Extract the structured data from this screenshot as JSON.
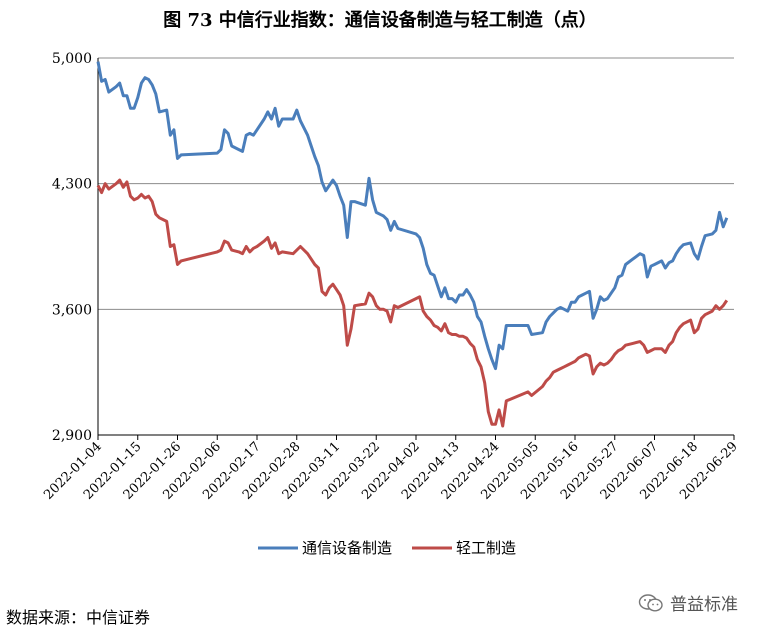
{
  "chart_data": {
    "type": "line",
    "title": "图 73  中信行业指数：通信设备制造与轻工制造（点）",
    "ylim": [
      2900,
      5000
    ],
    "yticks": [
      "2,900",
      "3,600",
      "4,300",
      "5,000"
    ],
    "ytick_values": [
      2900,
      3600,
      4300,
      5000
    ],
    "xtick_labels": [
      "2022-01-04",
      "2022-01-15",
      "2022-01-26",
      "2022-02-06",
      "2022-02-17",
      "2022-02-28",
      "2022-03-11",
      "2022-03-22",
      "2022-04-02",
      "2022-04-13",
      "2022-04-24",
      "2022-05-05",
      "2022-05-16",
      "2022-05-27",
      "2022-06-07",
      "2022-06-18",
      "2022-06-29"
    ],
    "xtick_days": [
      0,
      11,
      22,
      33,
      44,
      55,
      66,
      77,
      88,
      99,
      110,
      121,
      132,
      143,
      154,
      165,
      176
    ],
    "grid": "horizontal",
    "legend": "bottom",
    "series": [
      {
        "name": "通信设备制造",
        "color": "#4a7ebb",
        "points": [
          [
            0,
            4980
          ],
          [
            1,
            4870
          ],
          [
            2,
            4880
          ],
          [
            3,
            4810
          ],
          [
            5,
            4840
          ],
          [
            6,
            4860
          ],
          [
            7,
            4790
          ],
          [
            8,
            4790
          ],
          [
            9,
            4720
          ],
          [
            10,
            4720
          ],
          [
            11,
            4780
          ],
          [
            12,
            4860
          ],
          [
            13,
            4890
          ],
          [
            14,
            4880
          ],
          [
            15,
            4850
          ],
          [
            16,
            4800
          ],
          [
            17,
            4700
          ],
          [
            19,
            4710
          ],
          [
            20,
            4570
          ],
          [
            21,
            4600
          ],
          [
            22,
            4440
          ],
          [
            23,
            4460
          ],
          [
            33,
            4470
          ],
          [
            34,
            4490
          ],
          [
            35,
            4600
          ],
          [
            36,
            4580
          ],
          [
            37,
            4510
          ],
          [
            39,
            4490
          ],
          [
            40,
            4480
          ],
          [
            41,
            4570
          ],
          [
            42,
            4580
          ],
          [
            43,
            4570
          ],
          [
            44,
            4600
          ],
          [
            46,
            4660
          ],
          [
            47,
            4700
          ],
          [
            48,
            4660
          ],
          [
            49,
            4720
          ],
          [
            50,
            4620
          ],
          [
            51,
            4660
          ],
          [
            54,
            4660
          ],
          [
            55,
            4710
          ],
          [
            56,
            4650
          ],
          [
            58,
            4570
          ],
          [
            59,
            4510
          ],
          [
            60,
            4450
          ],
          [
            61,
            4400
          ],
          [
            62,
            4310
          ],
          [
            63,
            4260
          ],
          [
            64,
            4290
          ],
          [
            65,
            4320
          ],
          [
            66,
            4290
          ],
          [
            67,
            4230
          ],
          [
            68,
            4180
          ],
          [
            69,
            4000
          ],
          [
            70,
            4200
          ],
          [
            71,
            4200
          ],
          [
            74,
            4180
          ],
          [
            75,
            4330
          ],
          [
            76,
            4210
          ],
          [
            77,
            4140
          ],
          [
            78,
            4130
          ],
          [
            79,
            4120
          ],
          [
            80,
            4100
          ],
          [
            81,
            4040
          ],
          [
            82,
            4090
          ],
          [
            83,
            4050
          ],
          [
            88,
            4020
          ],
          [
            89,
            4000
          ],
          [
            90,
            3940
          ],
          [
            91,
            3850
          ],
          [
            92,
            3800
          ],
          [
            93,
            3790
          ],
          [
            94,
            3730
          ],
          [
            95,
            3670
          ],
          [
            96,
            3720
          ],
          [
            97,
            3660
          ],
          [
            98,
            3660
          ],
          [
            99,
            3640
          ],
          [
            100,
            3680
          ],
          [
            101,
            3680
          ],
          [
            102,
            3710
          ],
          [
            103,
            3680
          ],
          [
            104,
            3640
          ],
          [
            105,
            3560
          ],
          [
            106,
            3530
          ],
          [
            107,
            3450
          ],
          [
            108,
            3380
          ],
          [
            109,
            3320
          ],
          [
            110,
            3270
          ],
          [
            111,
            3400
          ],
          [
            112,
            3380
          ],
          [
            113,
            3510
          ],
          [
            119,
            3510
          ],
          [
            120,
            3460
          ],
          [
            123,
            3470
          ],
          [
            124,
            3530
          ],
          [
            125,
            3560
          ],
          [
            126,
            3580
          ],
          [
            127,
            3600
          ],
          [
            128,
            3610
          ],
          [
            129,
            3600
          ],
          [
            130,
            3590
          ],
          [
            131,
            3640
          ],
          [
            132,
            3640
          ],
          [
            133,
            3670
          ],
          [
            134,
            3680
          ],
          [
            135,
            3690
          ],
          [
            136,
            3700
          ],
          [
            137,
            3550
          ],
          [
            138,
            3600
          ],
          [
            139,
            3670
          ],
          [
            140,
            3650
          ],
          [
            141,
            3660
          ],
          [
            142,
            3690
          ],
          [
            143,
            3720
          ],
          [
            144,
            3780
          ],
          [
            145,
            3790
          ],
          [
            146,
            3850
          ],
          [
            148,
            3880
          ],
          [
            150,
            3910
          ],
          [
            151,
            3900
          ],
          [
            152,
            3780
          ],
          [
            153,
            3840
          ],
          [
            154,
            3850
          ],
          [
            156,
            3870
          ],
          [
            157,
            3830
          ],
          [
            158,
            3860
          ],
          [
            159,
            3870
          ],
          [
            160,
            3910
          ],
          [
            161,
            3940
          ],
          [
            162,
            3960
          ],
          [
            164,
            3970
          ],
          [
            165,
            3910
          ],
          [
            166,
            3880
          ],
          [
            167,
            3950
          ],
          [
            168,
            4010
          ],
          [
            170,
            4020
          ],
          [
            171,
            4040
          ],
          [
            172,
            4140
          ],
          [
            173,
            4060
          ],
          [
            174,
            4110
          ]
        ]
      },
      {
        "name": "轻工制造",
        "color": "#be4b48",
        "points": [
          [
            0,
            4290
          ],
          [
            1,
            4250
          ],
          [
            2,
            4300
          ],
          [
            3,
            4270
          ],
          [
            5,
            4300
          ],
          [
            6,
            4320
          ],
          [
            7,
            4280
          ],
          [
            8,
            4310
          ],
          [
            9,
            4230
          ],
          [
            10,
            4210
          ],
          [
            11,
            4220
          ],
          [
            12,
            4240
          ],
          [
            13,
            4220
          ],
          [
            14,
            4230
          ],
          [
            15,
            4200
          ],
          [
            16,
            4130
          ],
          [
            17,
            4110
          ],
          [
            19,
            4090
          ],
          [
            20,
            3950
          ],
          [
            21,
            3960
          ],
          [
            22,
            3850
          ],
          [
            23,
            3870
          ],
          [
            33,
            3920
          ],
          [
            34,
            3930
          ],
          [
            35,
            3980
          ],
          [
            36,
            3970
          ],
          [
            37,
            3930
          ],
          [
            39,
            3920
          ],
          [
            40,
            3910
          ],
          [
            41,
            3950
          ],
          [
            42,
            3920
          ],
          [
            43,
            3940
          ],
          [
            44,
            3950
          ],
          [
            46,
            3980
          ],
          [
            47,
            4000
          ],
          [
            48,
            3940
          ],
          [
            49,
            3970
          ],
          [
            50,
            3910
          ],
          [
            51,
            3920
          ],
          [
            54,
            3910
          ],
          [
            55,
            3930
          ],
          [
            56,
            3950
          ],
          [
            58,
            3910
          ],
          [
            59,
            3880
          ],
          [
            60,
            3850
          ],
          [
            61,
            3830
          ],
          [
            62,
            3700
          ],
          [
            63,
            3680
          ],
          [
            64,
            3720
          ],
          [
            65,
            3740
          ],
          [
            66,
            3710
          ],
          [
            67,
            3680
          ],
          [
            68,
            3620
          ],
          [
            69,
            3400
          ],
          [
            70,
            3490
          ],
          [
            71,
            3620
          ],
          [
            74,
            3630
          ],
          [
            75,
            3690
          ],
          [
            76,
            3670
          ],
          [
            77,
            3620
          ],
          [
            78,
            3600
          ],
          [
            79,
            3600
          ],
          [
            80,
            3590
          ],
          [
            81,
            3530
          ],
          [
            82,
            3620
          ],
          [
            83,
            3610
          ],
          [
            88,
            3660
          ],
          [
            89,
            3670
          ],
          [
            90,
            3590
          ],
          [
            91,
            3560
          ],
          [
            92,
            3540
          ],
          [
            93,
            3510
          ],
          [
            94,
            3500
          ],
          [
            95,
            3480
          ],
          [
            96,
            3520
          ],
          [
            97,
            3470
          ],
          [
            98,
            3460
          ],
          [
            99,
            3460
          ],
          [
            100,
            3450
          ],
          [
            101,
            3450
          ],
          [
            102,
            3440
          ],
          [
            103,
            3410
          ],
          [
            104,
            3390
          ],
          [
            105,
            3320
          ],
          [
            106,
            3280
          ],
          [
            107,
            3190
          ],
          [
            108,
            3030
          ],
          [
            109,
            2960
          ],
          [
            110,
            2960
          ],
          [
            111,
            3040
          ],
          [
            112,
            2950
          ],
          [
            113,
            3090
          ],
          [
            119,
            3140
          ],
          [
            120,
            3120
          ],
          [
            123,
            3170
          ],
          [
            124,
            3200
          ],
          [
            125,
            3220
          ],
          [
            126,
            3250
          ],
          [
            127,
            3260
          ],
          [
            128,
            3270
          ],
          [
            129,
            3280
          ],
          [
            130,
            3290
          ],
          [
            131,
            3300
          ],
          [
            132,
            3310
          ],
          [
            133,
            3330
          ],
          [
            134,
            3340
          ],
          [
            135,
            3350
          ],
          [
            136,
            3340
          ],
          [
            137,
            3240
          ],
          [
            138,
            3280
          ],
          [
            139,
            3300
          ],
          [
            140,
            3290
          ],
          [
            141,
            3300
          ],
          [
            142,
            3320
          ],
          [
            143,
            3350
          ],
          [
            144,
            3370
          ],
          [
            145,
            3380
          ],
          [
            146,
            3400
          ],
          [
            148,
            3410
          ],
          [
            150,
            3420
          ],
          [
            151,
            3400
          ],
          [
            152,
            3360
          ],
          [
            153,
            3370
          ],
          [
            154,
            3380
          ],
          [
            156,
            3380
          ],
          [
            157,
            3360
          ],
          [
            158,
            3400
          ],
          [
            159,
            3420
          ],
          [
            160,
            3470
          ],
          [
            161,
            3500
          ],
          [
            162,
            3520
          ],
          [
            164,
            3540
          ],
          [
            165,
            3470
          ],
          [
            166,
            3490
          ],
          [
            167,
            3550
          ],
          [
            168,
            3570
          ],
          [
            170,
            3590
          ],
          [
            171,
            3620
          ],
          [
            172,
            3600
          ],
          [
            173,
            3620
          ],
          [
            174,
            3650
          ]
        ]
      }
    ]
  },
  "footer": {
    "source": "数据来源：中信证券",
    "watermark": "普益标准"
  }
}
